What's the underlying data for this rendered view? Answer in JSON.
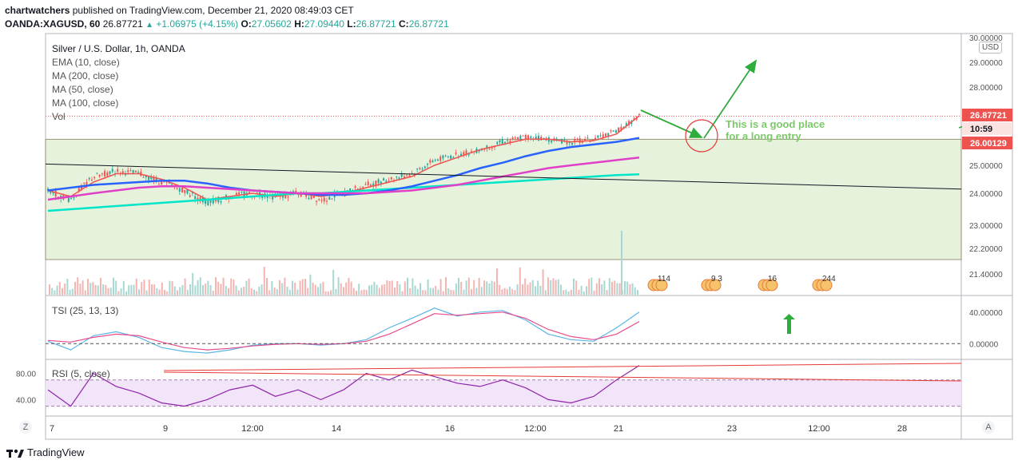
{
  "header": {
    "author": "chartwatchers",
    "published": "published on TradingView.com, December 21, 2020 08:49:03 CET"
  },
  "ohlc": {
    "symbol": "OANDA:XAGUSD, 60",
    "last": "26.87721",
    "change": "+1.06975 (+4.15%)",
    "o_label": "O:",
    "o": "27.05602",
    "h_label": "H:",
    "h": "27.09440",
    "l_label": "L:",
    "l": "26.87721",
    "c_label": "C:",
    "c": "26.87721"
  },
  "legend": {
    "title": "Silver / U.S. Dollar, 1h, OANDA",
    "ema10": "EMA (10, close)",
    "ma200": "MA (200, close)",
    "ma50": "MA (50, close)",
    "ma100": "MA (100, close)",
    "vol": "Vol"
  },
  "tsi_label": "TSI (25, 13, 13)",
  "rsi_label": "RSI (5, close)",
  "currency": "USD",
  "annotation": {
    "line1": "This is a good place",
    "line2": "for a long entry"
  },
  "price_tags": {
    "last": "26.87721",
    "countdown": "10:59",
    "level": "26.00129"
  },
  "events": [
    "114",
    "9 3",
    "16",
    "244"
  ],
  "z_button": "Z",
  "a_button": "A",
  "brand": "TradingView",
  "colors": {
    "up": "#26a69a",
    "down": "#ef5350",
    "ema10": "#ef5350",
    "ma200": "#00e5c7",
    "ma50": "#2962ff",
    "ma100": "#e040c8",
    "zone": "#e6f2dc",
    "arrow": "#2eac3c",
    "tsi": "#5ab6e8",
    "tsi_signal": "#ea4a8c",
    "rsi": "#8e24aa",
    "annotation": "#7cc96a"
  },
  "chart_data": [
    {
      "type": "line",
      "pane": "price",
      "title": "Silver / U.S. Dollar, 1h, OANDA",
      "ylabel": "USD",
      "ylim": [
        21.2,
        30.0
      ],
      "y_ticks": [
        "30.00000",
        "29.00000",
        "28.00000",
        "25.00000",
        "24.00000",
        "23.00000",
        "22.20000",
        "21.40000"
      ],
      "x_ticks": [
        "7",
        "9",
        "12:00",
        "14",
        "16",
        "12:00",
        "21",
        "23",
        "12:00",
        "28"
      ],
      "x": [
        0,
        1,
        2,
        3,
        4,
        5,
        6,
        7,
        8,
        9,
        10,
        11,
        12,
        13,
        14,
        15,
        16,
        17,
        18,
        19,
        20,
        21,
        22,
        23,
        24,
        25,
        26
      ],
      "series": [
        {
          "name": "Close",
          "values": [
            24.1,
            23.8,
            24.6,
            24.8,
            24.7,
            24.4,
            24.1,
            23.7,
            23.9,
            24.0,
            23.9,
            24.0,
            23.8,
            24.0,
            24.3,
            24.5,
            24.7,
            25.2,
            25.4,
            25.6,
            25.9,
            26.1,
            26.0,
            25.9,
            26.0,
            26.3,
            26.88
          ]
        },
        {
          "name": "EMA (10, close)",
          "values": [
            24.1,
            23.9,
            24.4,
            24.7,
            24.7,
            24.5,
            24.2,
            23.8,
            23.9,
            24.0,
            23.9,
            24.0,
            23.9,
            24.0,
            24.2,
            24.4,
            24.6,
            25.0,
            25.3,
            25.6,
            25.8,
            26.0,
            26.0,
            25.9,
            25.95,
            26.2,
            26.9
          ]
        },
        {
          "name": "MA (200, close)",
          "values": [
            23.45,
            23.5,
            23.55,
            23.6,
            23.65,
            23.7,
            23.75,
            23.8,
            23.85,
            23.9,
            23.95,
            24.0,
            24.0,
            24.05,
            24.1,
            24.15,
            24.2,
            24.25,
            24.3,
            24.35,
            24.4,
            24.45,
            24.5,
            24.55,
            24.6,
            24.65,
            24.68
          ]
        },
        {
          "name": "MA (50, close)",
          "values": [
            24.1,
            24.2,
            24.3,
            24.35,
            24.4,
            24.45,
            24.45,
            24.35,
            24.2,
            24.1,
            24.05,
            24.0,
            23.95,
            23.95,
            24.0,
            24.1,
            24.25,
            24.45,
            24.65,
            24.9,
            25.1,
            25.35,
            25.55,
            25.7,
            25.8,
            25.9,
            26.05
          ]
        },
        {
          "name": "MA (100, close)",
          "values": [
            23.8,
            23.9,
            24.0,
            24.1,
            24.2,
            24.25,
            24.25,
            24.2,
            24.15,
            24.1,
            24.05,
            24.0,
            24.0,
            24.0,
            24.0,
            24.05,
            24.1,
            24.2,
            24.3,
            24.45,
            24.6,
            24.75,
            24.9,
            25.0,
            25.1,
            25.2,
            25.3
          ]
        }
      ]
    },
    {
      "type": "line",
      "pane": "tsi",
      "title": "TSI (25, 13, 13)",
      "ylim": [
        -20,
        60
      ],
      "y_ticks": [
        "40.00000",
        "0.00000"
      ],
      "x": [
        0,
        1,
        2,
        3,
        4,
        5,
        6,
        7,
        8,
        9,
        10,
        11,
        12,
        13,
        14,
        15,
        16,
        17,
        18,
        19,
        20,
        21,
        22,
        23,
        24,
        25,
        26
      ],
      "series": [
        {
          "name": "TSI",
          "values": [
            3,
            -8,
            10,
            15,
            8,
            -5,
            -10,
            -12,
            -8,
            -2,
            0,
            0,
            -2,
            0,
            5,
            20,
            32,
            45,
            35,
            40,
            42,
            30,
            12,
            5,
            3,
            20,
            40
          ]
        },
        {
          "name": "Signal",
          "values": [
            4,
            2,
            8,
            12,
            10,
            2,
            -5,
            -8,
            -6,
            -3,
            -1,
            0,
            -1,
            0,
            3,
            12,
            25,
            38,
            36,
            38,
            40,
            32,
            18,
            9,
            5,
            12,
            28
          ]
        }
      ]
    },
    {
      "type": "line",
      "pane": "rsi",
      "title": "RSI (5, close)",
      "ylim": [
        15,
        100
      ],
      "y_ticks": [
        "80.00",
        "40.00"
      ],
      "x": [
        0,
        1,
        2,
        3,
        4,
        5,
        6,
        7,
        8,
        9,
        10,
        11,
        12,
        13,
        14,
        15,
        16,
        17,
        18,
        19,
        20,
        21,
        22,
        23,
        24,
        25,
        26
      ],
      "series": [
        {
          "name": "RSI",
          "values": [
            55,
            30,
            80,
            60,
            50,
            35,
            30,
            40,
            55,
            62,
            45,
            55,
            40,
            55,
            80,
            70,
            85,
            75,
            65,
            60,
            70,
            58,
            40,
            35,
            45,
            70,
            92
          ]
        }
      ]
    }
  ]
}
